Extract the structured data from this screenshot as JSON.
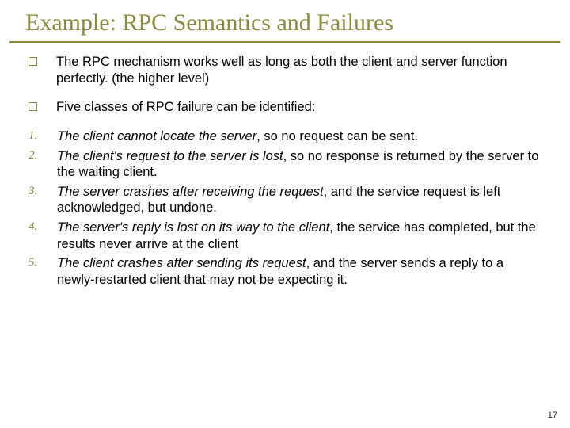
{
  "title": "Example: RPC Semantics and Failures",
  "bullets": [
    "The RPC mechanism works well as long as both the client and server function perfectly. (the higher level)",
    "Five classes of RPC failure can be identified:"
  ],
  "items": [
    {
      "num": "1.",
      "em": "The client cannot locate the server",
      "rest": ", so no request can be sent."
    },
    {
      "num": "2.",
      "em": "The client's request to the server is lost",
      "rest": ", so no response is returned by the server to the waiting client."
    },
    {
      "num": "3.",
      "em": "The server crashes after receiving the request",
      "rest": ", and the service request is left acknowledged, but undone."
    },
    {
      "num": "4.",
      "em": "The server's reply is lost on its way to the client",
      "rest": ", the service has completed, but the results never arrive at the client"
    },
    {
      "num": "5.",
      "em": "The client crashes after sending its request",
      "rest": ", and the server sends a reply to a newly-restarted client that may not be expecting it."
    }
  ],
  "page_number": "17",
  "colors": {
    "accent": "#8a8a3a",
    "text": "#000000",
    "bg": "#ffffff"
  }
}
